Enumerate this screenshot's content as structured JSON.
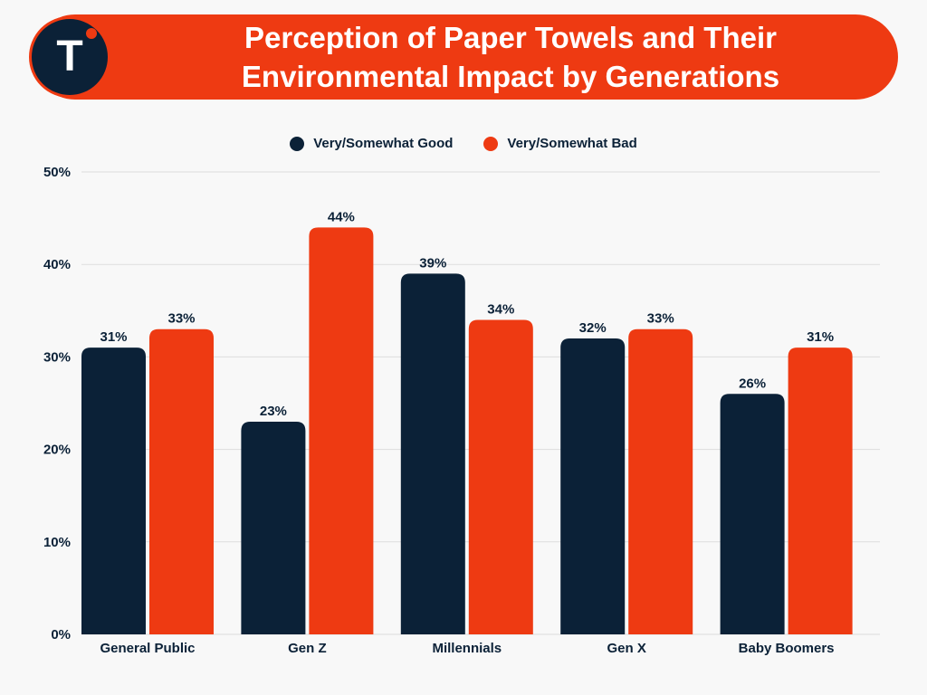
{
  "header": {
    "title": "Perception of Paper Towels and Their Environmental Impact by Generations",
    "logo_letter": "T"
  },
  "colors": {
    "brand_orange": "#ee3a12",
    "navy": "#0b2137",
    "background": "#f8f8f8",
    "grid": "#dddddd"
  },
  "chart_data": {
    "type": "bar",
    "title": "Perception of Paper Towels and Their Environmental Impact by Generations",
    "categories": [
      "General Public",
      "Gen Z",
      "Millennials",
      "Gen X",
      "Baby Boomers"
    ],
    "series": [
      {
        "name": "Very/Somewhat Good",
        "color": "#0b2137",
        "values": [
          31,
          23,
          39,
          32,
          26
        ],
        "labels": [
          "31%",
          "23%",
          "39%",
          "32%",
          "26%"
        ]
      },
      {
        "name": "Very/Somewhat Bad",
        "color": "#ee3a12",
        "values": [
          33,
          44,
          34,
          33,
          31
        ],
        "labels": [
          "33%",
          "44%",
          "34%",
          "33%",
          "31%"
        ]
      }
    ],
    "ylim": [
      0,
      50
    ],
    "yticks": [
      0,
      10,
      20,
      30,
      40,
      50
    ],
    "ytick_labels": [
      "0%",
      "10%",
      "20%",
      "30%",
      "40%",
      "50%"
    ],
    "grid": true,
    "legend_position": "top-center",
    "xlabel": "",
    "ylabel": ""
  }
}
